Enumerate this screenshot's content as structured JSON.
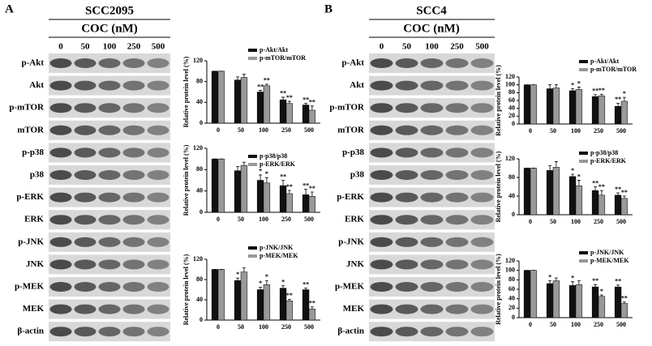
{
  "panels": [
    {
      "letter": "A",
      "cell_line": "SCC2095",
      "treatment": "COC (nM)",
      "doses": [
        "0",
        "50",
        "100",
        "250",
        "500"
      ],
      "blots": [
        "p-Akt",
        "Akt",
        "p-mTOR",
        "mTOR",
        "p-p38",
        "p38",
        "p-ERK",
        "ERK",
        "p-JNK",
        "JNK",
        "p-MEK",
        "MEK",
        "β-actin"
      ]
    },
    {
      "letter": "B",
      "cell_line": "SCC4",
      "treatment": "COC (nM)",
      "doses": [
        "0",
        "50",
        "100",
        "250",
        "500"
      ],
      "blots": [
        "p-Akt",
        "Akt",
        "p-mTOR",
        "mTOR",
        "p-p38",
        "p38",
        "p-ERK",
        "ERK",
        "p-JNK",
        "JNK",
        "p-MEK",
        "MEK",
        "β-actin"
      ]
    }
  ],
  "chart_data": [
    {
      "type": "bar",
      "y_label": "Relative protein level (%)",
      "categories": [
        "0",
        "50",
        "100",
        "250",
        "500"
      ],
      "ylim": [
        0,
        120
      ],
      "yticks": [
        0,
        40,
        80,
        120
      ],
      "series": [
        {
          "name": "p-Akt/Akt",
          "color": "#111111",
          "values": [
            100,
            83,
            60,
            45,
            35
          ],
          "errors": [
            0,
            6,
            3,
            5,
            3
          ],
          "stars": [
            null,
            null,
            "**",
            "**",
            "**"
          ]
        },
        {
          "name": "p-mTOR/mTOR",
          "color": "#999999",
          "values": [
            100,
            88,
            72,
            38,
            25
          ],
          "errors": [
            0,
            6,
            3,
            4,
            8
          ],
          "stars": [
            null,
            null,
            "**",
            "**",
            "**"
          ]
        }
      ]
    },
    {
      "type": "bar",
      "y_label": "Relative protein level (%)",
      "categories": [
        "0",
        "50",
        "100",
        "250",
        "500"
      ],
      "ylim": [
        0,
        120
      ],
      "yticks": [
        0,
        40,
        80,
        120
      ],
      "series": [
        {
          "name": "p-p38/p38",
          "color": "#111111",
          "values": [
            100,
            78,
            60,
            50,
            33
          ],
          "errors": [
            0,
            8,
            10,
            10,
            10
          ],
          "stars": [
            null,
            null,
            "*",
            "**",
            "**"
          ]
        },
        {
          "name": "p-ERK/ERK",
          "color": "#999999",
          "values": [
            100,
            88,
            55,
            35,
            30
          ],
          "errors": [
            0,
            6,
            10,
            6,
            8
          ],
          "stars": [
            null,
            null,
            "*",
            "**",
            "**"
          ]
        }
      ]
    },
    {
      "type": "bar",
      "y_label": "Relative protein level (%)",
      "categories": [
        "0",
        "50",
        "100",
        "250",
        "500"
      ],
      "ylim": [
        0,
        120
      ],
      "yticks": [
        0,
        40,
        80,
        120
      ],
      "series": [
        {
          "name": "p-JNK/JNK",
          "color": "#111111",
          "values": [
            100,
            78,
            60,
            63,
            60
          ],
          "errors": [
            0,
            5,
            5,
            5,
            3
          ],
          "stars": [
            null,
            "*",
            "*",
            "*",
            "**"
          ]
        },
        {
          "name": "p-MEK/MEK",
          "color": "#999999",
          "values": [
            100,
            95,
            70,
            38,
            22
          ],
          "errors": [
            0,
            8,
            8,
            3,
            4
          ],
          "stars": [
            null,
            null,
            "*",
            "**",
            "**"
          ]
        }
      ]
    },
    {
      "type": "bar",
      "y_label": "Relative protein level (%)",
      "categories": [
        "0",
        "50",
        "100",
        "250",
        "500"
      ],
      "ylim": [
        0,
        120
      ],
      "yticks": [
        0,
        20,
        40,
        60,
        80,
        100,
        120
      ],
      "series": [
        {
          "name": "p-Akt/Akt",
          "color": "#111111",
          "values": [
            100,
            90,
            85,
            70,
            45
          ],
          "errors": [
            0,
            10,
            5,
            5,
            8
          ],
          "stars": [
            null,
            null,
            "*",
            "**",
            "**"
          ]
        },
        {
          "name": "p-mTOR/mTOR",
          "color": "#999999",
          "values": [
            100,
            92,
            88,
            72,
            58
          ],
          "errors": [
            0,
            8,
            6,
            4,
            10
          ],
          "stars": [
            null,
            null,
            "*",
            "**",
            "*"
          ]
        }
      ]
    },
    {
      "type": "bar",
      "y_label": "Relative protein level (%)",
      "categories": [
        "0",
        "50",
        "100",
        "250",
        "500"
      ],
      "ylim": [
        0,
        120
      ],
      "yticks": [
        0,
        40,
        80,
        120
      ],
      "series": [
        {
          "name": "p-p38/p38",
          "color": "#111111",
          "values": [
            100,
            95,
            82,
            52,
            42
          ],
          "errors": [
            0,
            10,
            5,
            8,
            5
          ],
          "stars": [
            null,
            null,
            "*",
            "**",
            "**"
          ]
        },
        {
          "name": "p-ERK/ERK",
          "color": "#999999",
          "values": [
            100,
            102,
            62,
            42,
            35
          ],
          "errors": [
            0,
            12,
            12,
            10,
            5
          ],
          "stars": [
            null,
            null,
            "*",
            "**",
            "**"
          ]
        }
      ]
    },
    {
      "type": "bar",
      "y_label": "Relative protein level (%)",
      "categories": [
        "0",
        "50",
        "100",
        "250",
        "500"
      ],
      "ylim": [
        0,
        120
      ],
      "yticks": [
        0,
        20,
        40,
        60,
        80,
        100,
        120
      ],
      "series": [
        {
          "name": "p-JNK/JNK",
          "color": "#111111",
          "values": [
            100,
            72,
            68,
            65,
            65
          ],
          "errors": [
            0,
            6,
            8,
            5,
            4
          ],
          "stars": [
            null,
            "*",
            "*",
            "**",
            "**"
          ]
        },
        {
          "name": "p-MEK/MEK",
          "color": "#999999",
          "values": [
            100,
            78,
            70,
            45,
            30
          ],
          "errors": [
            0,
            6,
            8,
            3,
            3
          ],
          "stars": [
            null,
            null,
            null,
            "*",
            "**"
          ]
        }
      ]
    }
  ]
}
